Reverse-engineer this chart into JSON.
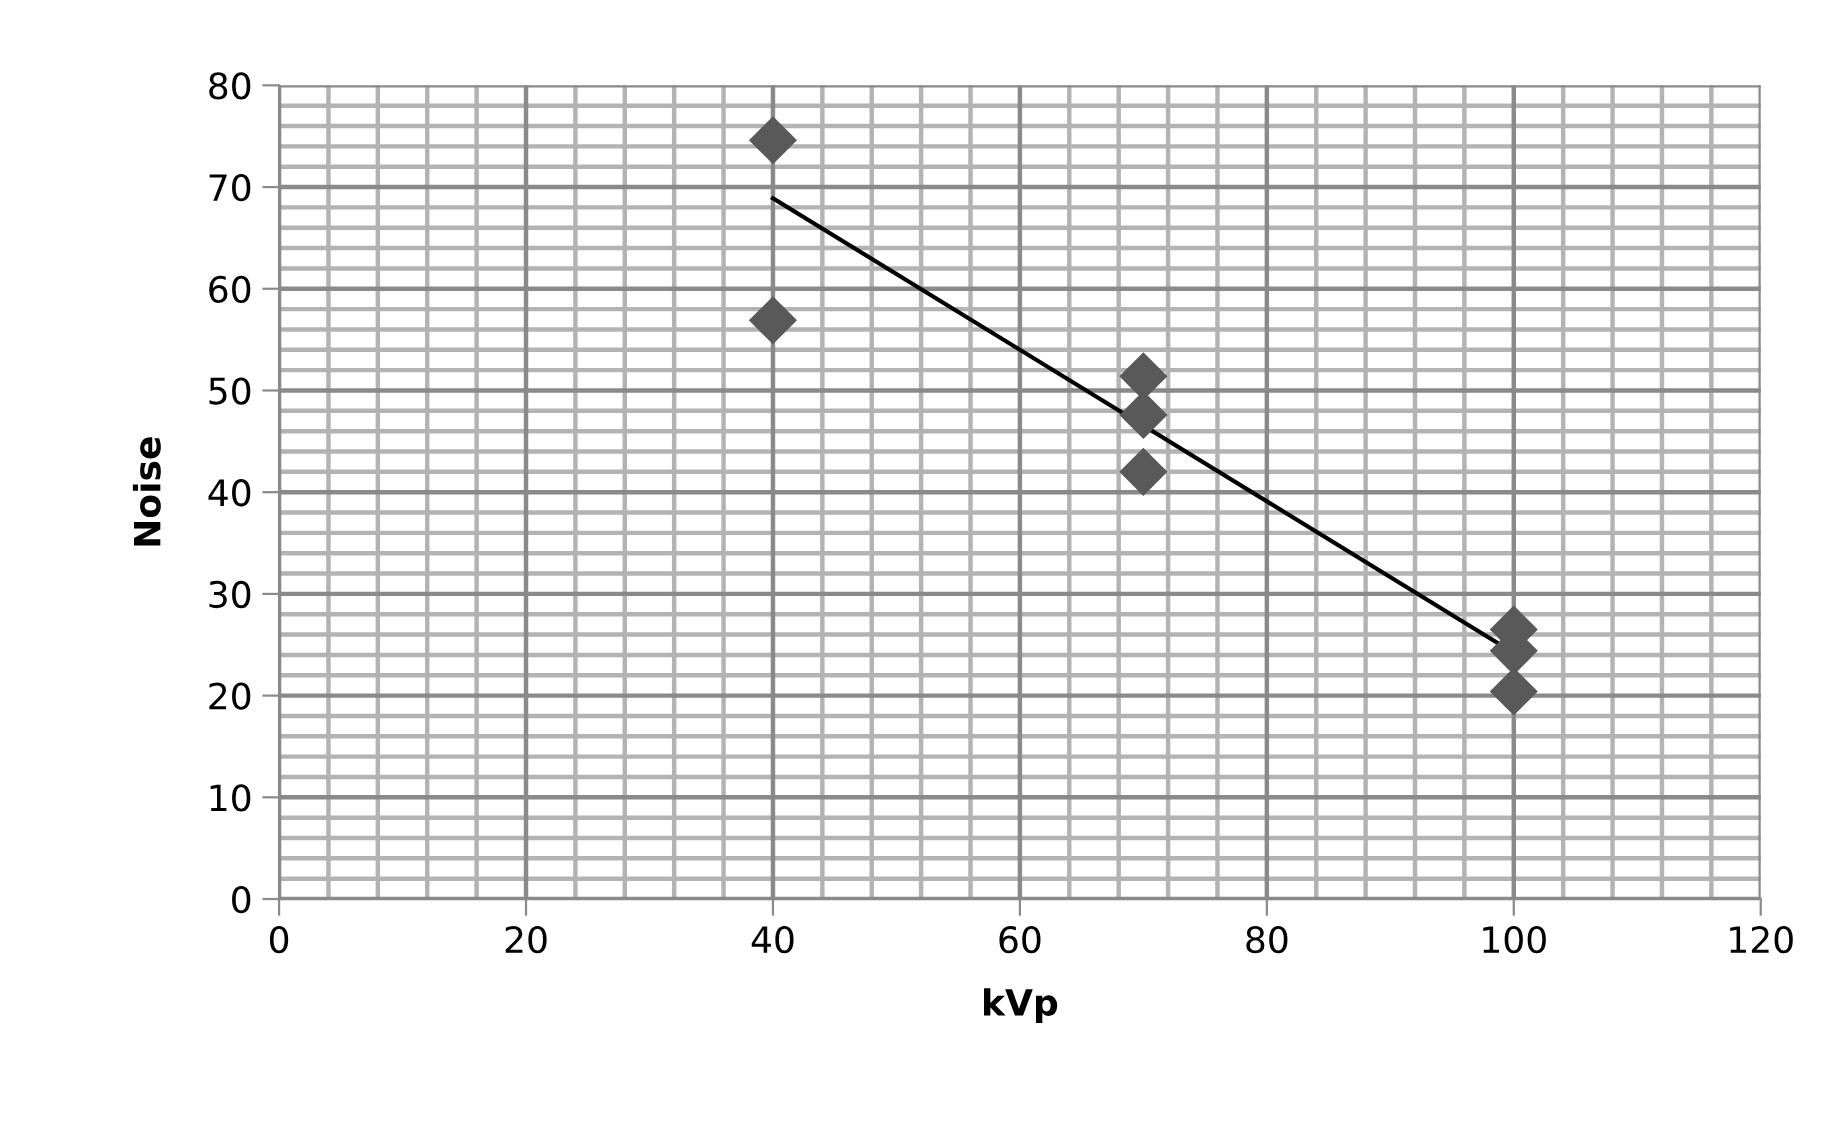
{
  "chart_data": {
    "type": "scatter",
    "xlabel": "kVp",
    "ylabel": "Noise",
    "xlim": [
      0,
      120
    ],
    "ylim": [
      0,
      80
    ],
    "xticks": [
      0,
      20,
      40,
      60,
      80,
      100,
      120
    ],
    "yticks": [
      0,
      10,
      20,
      30,
      40,
      50,
      60,
      70,
      80
    ],
    "grid": true,
    "marker": "diamond",
    "series": [
      {
        "color": "#595959",
        "x": [
          40,
          40,
          70,
          70,
          70,
          100,
          100,
          100
        ],
        "values": [
          74.6,
          56.9,
          51.4,
          47.6,
          42.0,
          26.5,
          24.4,
          20.4
        ]
      },
      {
        "type": "line",
        "color": "#000000",
        "x": [
          40,
          100
        ],
        "values": [
          68.9,
          24.2
        ],
        "marker": "none",
        "line_style": "solid"
      }
    ]
  }
}
